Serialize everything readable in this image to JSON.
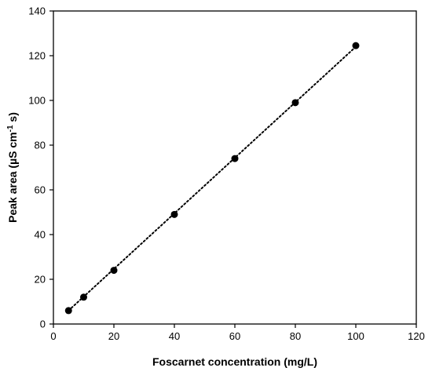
{
  "chart_data": {
    "type": "scatter",
    "title": "",
    "xlabel": "Foscarnet concentration (mg/L)",
    "ylabel_parts": [
      "Peak area (µS cm",
      "-1",
      " s)"
    ],
    "xlim": [
      0,
      120
    ],
    "ylim": [
      0,
      140
    ],
    "xticks": [
      0,
      20,
      40,
      60,
      80,
      100,
      120
    ],
    "yticks": [
      0,
      20,
      40,
      60,
      80,
      100,
      120,
      140
    ],
    "grid": false,
    "series": [
      {
        "x": [
          5,
          10,
          20,
          40,
          60,
          80,
          100
        ],
        "y": [
          6,
          12,
          24,
          49,
          74,
          99,
          124.5
        ],
        "marker": "circle",
        "color": "#000000"
      }
    ],
    "trendline": {
      "style": "dotted",
      "color": "#000000",
      "from": [
        5,
        6
      ],
      "to": [
        100,
        124
      ]
    }
  }
}
